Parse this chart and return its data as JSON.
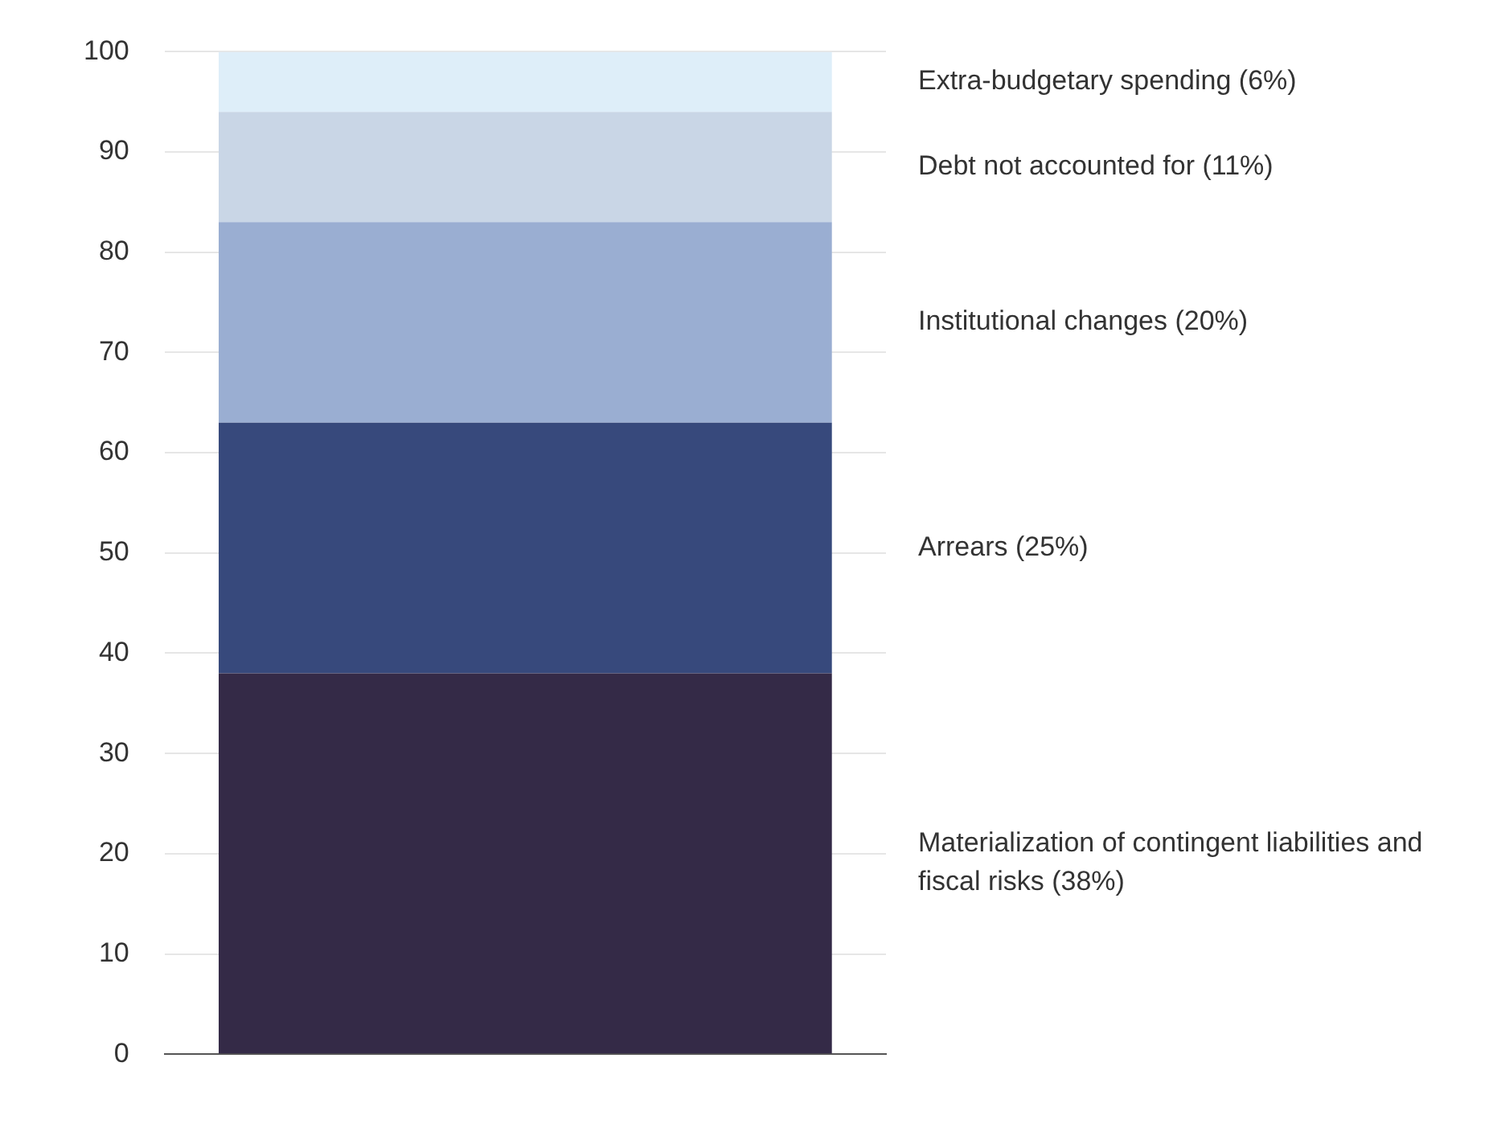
{
  "chart_data": {
    "type": "bar",
    "stacked": true,
    "categories": [
      null
    ],
    "series": [
      {
        "name": "Materialization of contingent liabilities and fiscal risks (38%)",
        "color": "#342a47",
        "values": [
          38
        ]
      },
      {
        "name": "Arrears (25%)",
        "color": "#37497c",
        "values": [
          25
        ]
      },
      {
        "name": "Institutional changes (20%)",
        "color": "#9aaed2",
        "values": [
          20
        ]
      },
      {
        "name": "Debt not accounted for (11%)",
        "color": "#c9d6e6",
        "values": [
          11
        ]
      },
      {
        "name": "Extra-budgetary spending (6%)",
        "color": "#deeef9",
        "values": [
          6
        ]
      }
    ],
    "ylim": [
      0,
      100
    ],
    "yticks": [
      0,
      10,
      20,
      30,
      40,
      50,
      60,
      70,
      80,
      90,
      100
    ],
    "grid": "y",
    "legend": false
  }
}
